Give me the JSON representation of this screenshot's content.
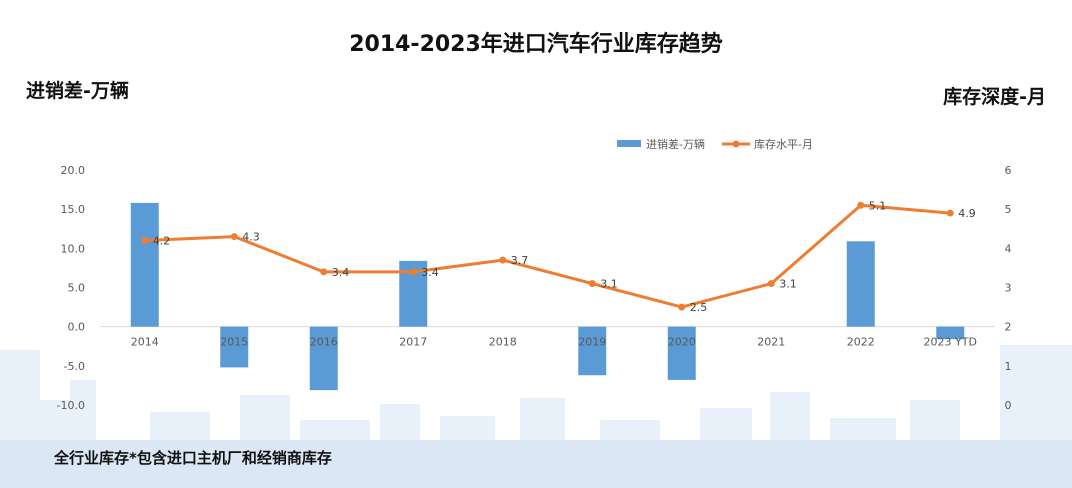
{
  "header": {
    "title": "2014-2023年进口汽车行业库存趋势",
    "left_axis_title": "进销差-万辆",
    "right_axis_title": "库存深度-月"
  },
  "footnote": "全行业库存*包含进口主机厂和经销商库存",
  "colors": {
    "bar": "#5b9bd5",
    "line": "#ed7d31",
    "axis_text": "#595959",
    "axis_line": "#d9d9d9",
    "background_deco": "#e6eef8"
  },
  "chart_data": {
    "type": "bar+line",
    "categories": [
      "2014",
      "2015",
      "2016",
      "2017",
      "2018",
      "2019",
      "2020",
      "2021",
      "2022",
      "2023 YTD"
    ],
    "series": [
      {
        "name": "进销差-万辆",
        "type": "bar",
        "axis": "left",
        "values": [
          15.8,
          -5.2,
          -8.1,
          8.4,
          0,
          -6.2,
          -6.8,
          0,
          10.9,
          -1.6
        ]
      },
      {
        "name": "库存水平-月",
        "type": "line",
        "axis": "right",
        "values": [
          4.2,
          4.3,
          3.4,
          3.4,
          3.7,
          3.1,
          2.5,
          3.1,
          5.1,
          4.9
        ],
        "labels": [
          "4.2",
          "4.3",
          "3.4",
          "3.4",
          "3.7",
          "3.1",
          "2.5",
          "3.1",
          "5.1",
          "4.9"
        ]
      }
    ],
    "left_axis": {
      "min": -10,
      "max": 20,
      "step": 5,
      "tick_labels": [
        "-10.0",
        "-5.0",
        "0.0",
        "5.0",
        "10.0",
        "15.0",
        "20.0"
      ]
    },
    "right_axis": {
      "min": 0,
      "max": 6,
      "step": 1,
      "tick_labels": [
        "0",
        "1",
        "2",
        "3",
        "4",
        "5",
        "6"
      ]
    },
    "legend": {
      "position": "top-right",
      "items": [
        "进销差-万辆",
        "库存水平-月"
      ]
    },
    "grid": false
  }
}
